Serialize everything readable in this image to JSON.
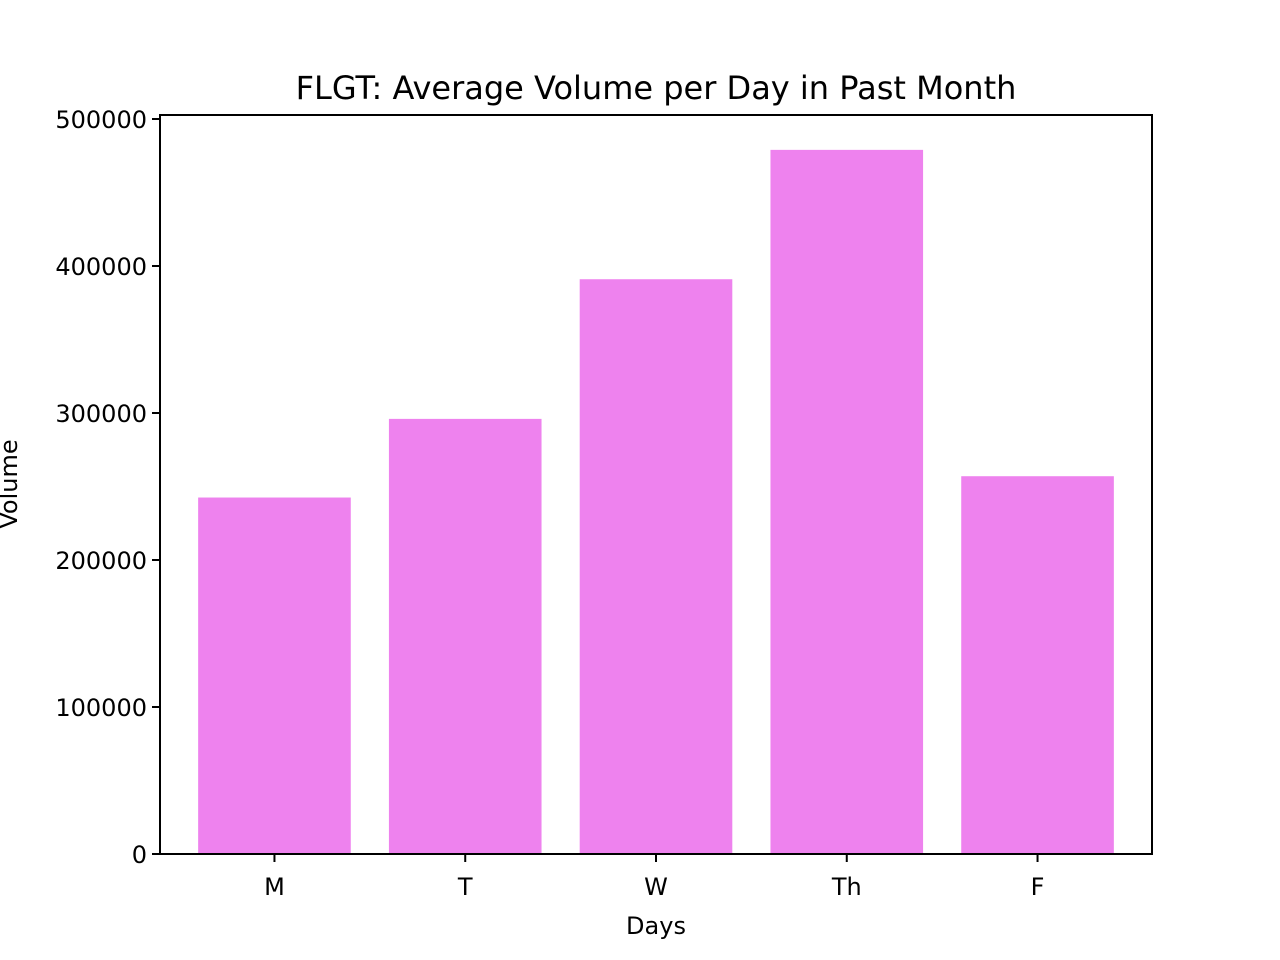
{
  "chart_data": {
    "type": "bar",
    "title": "FLGT: Average Volume per Day in Past Month",
    "xlabel": "Days",
    "ylabel": "Volume",
    "categories": [
      "M",
      "T",
      "W",
      "Th",
      "F"
    ],
    "values": [
      242500,
      296000,
      391000,
      479000,
      257000
    ],
    "ylim": [
      0,
      500000
    ],
    "yticks": [
      0,
      100000,
      200000,
      300000,
      400000,
      500000
    ],
    "ytick_labels": [
      "0",
      "100000",
      "200000",
      "300000",
      "400000",
      "500000"
    ],
    "bar_color": "#ee82ee",
    "grid": false,
    "legend": false
  }
}
